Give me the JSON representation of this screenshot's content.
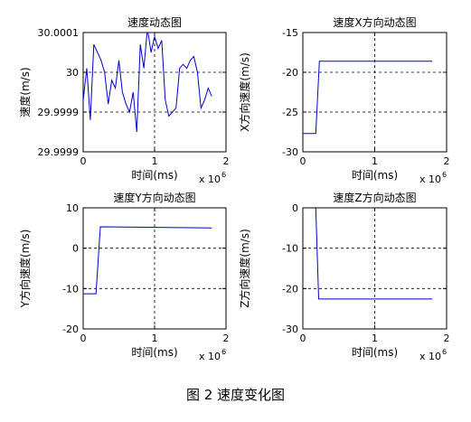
{
  "caption": "图 2 速度变化图",
  "chart_data": [
    {
      "type": "line",
      "title": "速度动态图",
      "xlabel": "时间(ms)",
      "ylabel": "速度(m/s)",
      "x_exponent_label": "x 10",
      "x_exponent": "6",
      "xlim": [
        0,
        2
      ],
      "xticks": [
        0,
        1,
        2
      ],
      "xtick_labels": [
        "0",
        "1",
        "2"
      ],
      "ylim": [
        29.99985,
        30.00015
      ],
      "yticks": [
        29.99985,
        29.99995,
        30.00005,
        30.00015
      ],
      "ytick_labels": [
        "29.9999",
        "29.9999",
        "30",
        "30.0001"
      ],
      "grid": true,
      "line_color": "#0000cc",
      "series": [
        {
          "x": [
            0,
            0.05,
            0.1,
            0.15,
            0.2,
            0.25,
            0.3,
            0.35,
            0.4,
            0.45,
            0.5,
            0.55,
            0.6,
            0.65,
            0.7,
            0.75,
            0.8,
            0.85,
            0.9,
            0.95,
            1.0,
            1.05,
            1.1,
            1.15,
            1.2,
            1.25,
            1.3,
            1.35,
            1.4,
            1.45,
            1.5,
            1.55,
            1.6,
            1.65,
            1.7,
            1.75,
            1.8
          ],
          "values": [
            29.99998,
            30.00006,
            29.99993,
            30.00012,
            30.0001,
            30.00008,
            30.00005,
            29.99997,
            30.00003,
            30.00001,
            30.00008,
            30.0,
            29.99997,
            29.99995,
            30.0,
            29.9999,
            30.00012,
            30.00006,
            30.00016,
            30.0001,
            30.00014,
            30.00011,
            30.00013,
            29.99998,
            29.99994,
            29.99995,
            29.99996,
            30.00006,
            30.00007,
            30.00006,
            30.00008,
            30.00009,
            30.00005,
            29.99996,
            29.99998,
            30.00001,
            29.99999
          ]
        }
      ]
    },
    {
      "type": "line",
      "title": "速度X方向动态图",
      "xlabel": "时间(ms)",
      "ylabel": "X方向速度(m/s)",
      "x_exponent_label": "x 10",
      "x_exponent": "6",
      "xlim": [
        0,
        2
      ],
      "xticks": [
        0,
        1,
        2
      ],
      "xtick_labels": [
        "0",
        "1",
        "2"
      ],
      "ylim": [
        -30,
        -15
      ],
      "yticks": [
        -30,
        -25,
        -20,
        -15
      ],
      "ytick_labels": [
        "-30",
        "-25",
        "-20",
        "-15"
      ],
      "grid": true,
      "line_color": "#0000cc",
      "series": [
        {
          "x": [
            0,
            0.18,
            0.23,
            1.8
          ],
          "values": [
            -27.7,
            -27.7,
            -18.6,
            -18.6
          ]
        }
      ]
    },
    {
      "type": "line",
      "title": "速度Y方向动态图",
      "xlabel": "时间(ms)",
      "ylabel": "Y方向速度(m/s)",
      "x_exponent_label": "x 10",
      "x_exponent": "6",
      "xlim": [
        0,
        2
      ],
      "xticks": [
        0,
        1,
        2
      ],
      "xtick_labels": [
        "0",
        "1",
        "2"
      ],
      "ylim": [
        -20,
        10
      ],
      "yticks": [
        -20,
        -10,
        0,
        10
      ],
      "ytick_labels": [
        "-20",
        "-10",
        "0",
        "10"
      ],
      "grid": true,
      "line_color": "#0000cc",
      "series": [
        {
          "x": [
            0,
            0.18,
            0.24,
            1.8
          ],
          "values": [
            -11.3,
            -11.3,
            5.3,
            5.0
          ]
        }
      ]
    },
    {
      "type": "line",
      "title": "速度Z方向动态图",
      "xlabel": "时间(ms)",
      "ylabel": "Z方向速度(m/s)",
      "x_exponent_label": "x 10",
      "x_exponent": "6",
      "xlim": [
        0,
        2
      ],
      "xticks": [
        0,
        1,
        2
      ],
      "xtick_labels": [
        "0",
        "1",
        "2"
      ],
      "ylim": [
        -30,
        0
      ],
      "yticks": [
        -30,
        -20,
        -10,
        0
      ],
      "ytick_labels": [
        "-30",
        "-20",
        "-10",
        "0"
      ],
      "grid": true,
      "line_color": "#0000cc",
      "series": [
        {
          "x": [
            0.18,
            0.22,
            1.8
          ],
          "values": [
            0,
            -22.6,
            -22.6
          ]
        }
      ]
    }
  ]
}
